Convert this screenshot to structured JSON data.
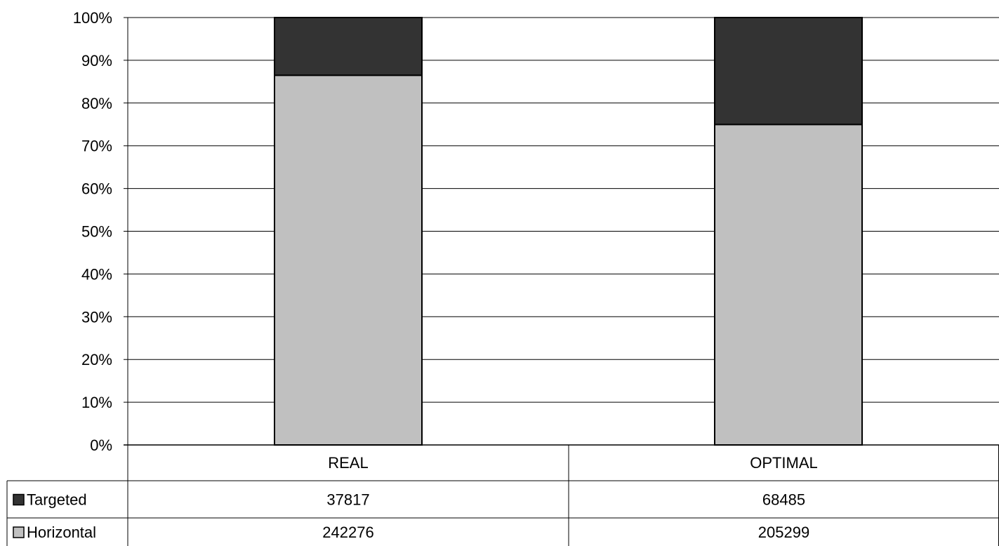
{
  "chart_data": {
    "type": "bar",
    "stacked": "percent",
    "categories": [
      "REAL",
      "OPTIMAL"
    ],
    "series": [
      {
        "name": "Horizontal",
        "values": [
          242276,
          205299
        ],
        "color": "#c0c0c0"
      },
      {
        "name": "Targeted",
        "values": [
          37817,
          68485
        ],
        "color": "#333333"
      }
    ],
    "y_ticks": [
      "0%",
      "10%",
      "20%",
      "30%",
      "40%",
      "50%",
      "60%",
      "70%",
      "80%",
      "90%",
      "100%"
    ],
    "ylim": [
      0,
      100
    ],
    "grid": true,
    "legend_placement": "data-table",
    "table_rows": [
      "Targeted",
      "Horizontal"
    ]
  }
}
